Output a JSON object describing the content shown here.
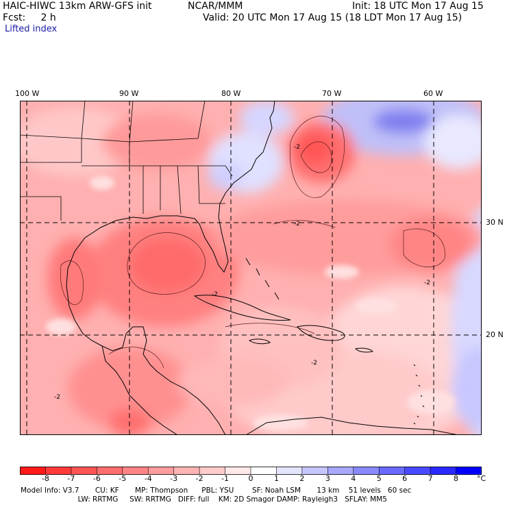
{
  "header": {
    "model_line": "HAIC-HIWC 13km ARW-GFS init",
    "org": "NCAR/MMM",
    "init": "Init: 18 UTC Mon 17 Aug 15",
    "fcst": "Fcst:     2 h",
    "valid": "Valid: 20 UTC Mon 17 Aug 15 (18 LDT Mon 17 Aug 15)",
    "field": "Lifted index"
  },
  "axes": {
    "lon_labels": [
      "100 W",
      "90 W",
      "80 W",
      "70 W",
      "60 W"
    ],
    "lat_labels": [
      "30 N",
      "20 N"
    ]
  },
  "contour_label": "-2",
  "colorbar": {
    "unit": "°C",
    "ticks": [
      "-8",
      "-7",
      "-6",
      "-5",
      "-4",
      "-3",
      "-2",
      "-1",
      "0",
      "1",
      "2",
      "3",
      "4",
      "5",
      "6",
      "7",
      "8"
    ],
    "colors": [
      "#ff1a1a",
      "#ff3a3a",
      "#ff5555",
      "#ff6e6e",
      "#ff8585",
      "#ff9c9c",
      "#ffb4b4",
      "#ffcccc",
      "#ffe8e8",
      "#ffffff",
      "#e4e4ff",
      "#c6c6ff",
      "#a8a8ff",
      "#8a8aff",
      "#6a6aff",
      "#4a4aff",
      "#2a2aff",
      "#0000ff"
    ]
  },
  "footer": {
    "line1": "Model Info: V3.7       CU: KF       MP: Thompson      PBL: YSU        SF: Noah LSM       13 km    51 levels   60 sec",
    "line2": "                         LW: RRTMG     SW: RRTMG   DIFF: full    KM: 2D Smagor DAMP: Rayleigh3   SFLAY: MM5"
  }
}
